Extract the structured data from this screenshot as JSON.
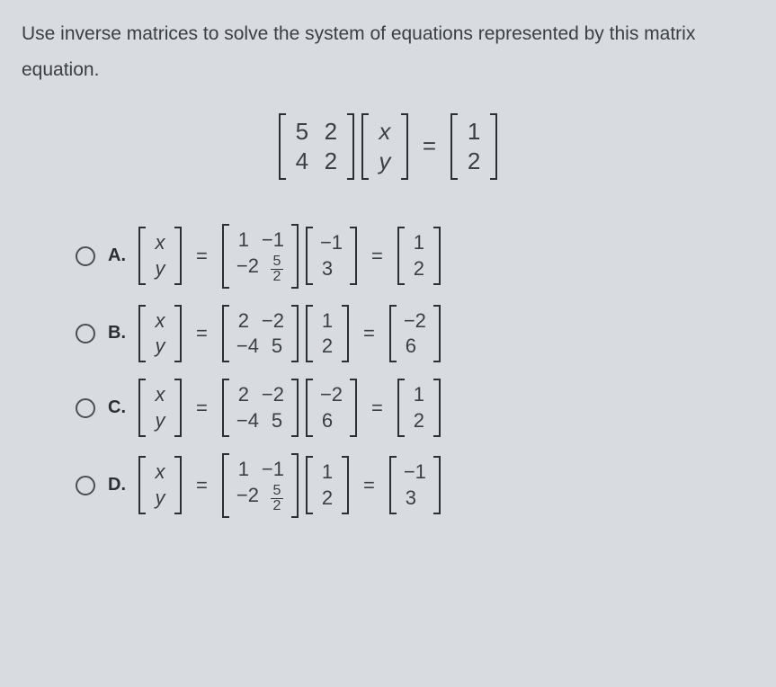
{
  "prompt": "Use inverse matrices to solve the system of equations represented by this matrix equation.",
  "mainEquation": {
    "matrix": [
      [
        "5",
        "2"
      ],
      [
        "4",
        "2"
      ]
    ],
    "vectorVars": [
      [
        "x"
      ],
      [
        "y"
      ]
    ],
    "result": [
      [
        "1"
      ],
      [
        "2"
      ]
    ]
  },
  "options": [
    {
      "label": "A.",
      "lhs": [
        [
          "x"
        ],
        [
          "y"
        ]
      ],
      "m2": [
        [
          "1",
          "−1"
        ],
        [
          "−2",
          "__frac_5_2"
        ]
      ],
      "v2": [
        [
          "−1"
        ],
        [
          "3"
        ]
      ],
      "res": [
        [
          "1"
        ],
        [
          "2"
        ]
      ]
    },
    {
      "label": "B.",
      "lhs": [
        [
          "x"
        ],
        [
          "y"
        ]
      ],
      "m2": [
        [
          "2",
          "−2"
        ],
        [
          "−4",
          "5"
        ]
      ],
      "v2": [
        [
          "1"
        ],
        [
          "2"
        ]
      ],
      "res": [
        [
          "−2"
        ],
        [
          "6"
        ]
      ]
    },
    {
      "label": "C.",
      "lhs": [
        [
          "x"
        ],
        [
          "y"
        ]
      ],
      "m2": [
        [
          "2",
          "−2"
        ],
        [
          "−4",
          "5"
        ]
      ],
      "v2": [
        [
          "−2"
        ],
        [
          "6"
        ]
      ],
      "res": [
        [
          "1"
        ],
        [
          "2"
        ]
      ]
    },
    {
      "label": "D.",
      "lhs": [
        [
          "x"
        ],
        [
          "y"
        ]
      ],
      "m2": [
        [
          "1",
          "−1"
        ],
        [
          "−2",
          "__frac_5_2"
        ]
      ],
      "v2": [
        [
          "1"
        ],
        [
          "2"
        ]
      ],
      "res": [
        [
          "−1"
        ],
        [
          "3"
        ]
      ]
    }
  ],
  "colors": {
    "background": "#d8dce0",
    "text": "#3a3f44",
    "border": "#2c3034"
  },
  "fonts": {
    "prompt_size": 21,
    "equation_size": 22,
    "main_equation_size": 26
  }
}
